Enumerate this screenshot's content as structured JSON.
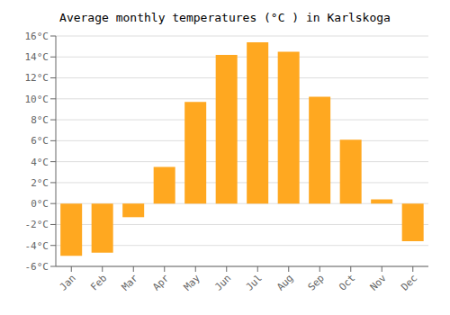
{
  "chart_data": {
    "type": "bar",
    "title": "Average monthly temperatures (°C ) in Karlskoga",
    "categories": [
      "Jan",
      "Feb",
      "Mar",
      "Apr",
      "May",
      "Jun",
      "Jul",
      "Aug",
      "Sep",
      "Oct",
      "Nov",
      "Dec"
    ],
    "values": [
      -5.0,
      -4.7,
      -1.3,
      3.5,
      9.7,
      14.2,
      15.4,
      14.5,
      10.2,
      6.1,
      0.4,
      -3.6
    ],
    "color": "#FFA820",
    "ylim": [
      -6,
      16
    ],
    "yticks": [
      {
        "value": -6,
        "label": "-6°C"
      },
      {
        "value": -4,
        "label": "-4°C"
      },
      {
        "value": -2,
        "label": "-2°C"
      },
      {
        "value": 0,
        "label": "0°C"
      },
      {
        "value": 2,
        "label": "2°C"
      },
      {
        "value": 4,
        "label": "4°C"
      },
      {
        "value": 6,
        "label": "6°C"
      },
      {
        "value": 8,
        "label": "8°C"
      },
      {
        "value": 10,
        "label": "10°C"
      },
      {
        "value": 12,
        "label": "12°C"
      },
      {
        "value": 14,
        "label": "14°C"
      },
      {
        "value": 16,
        "label": "16°C"
      }
    ],
    "grid": true
  }
}
